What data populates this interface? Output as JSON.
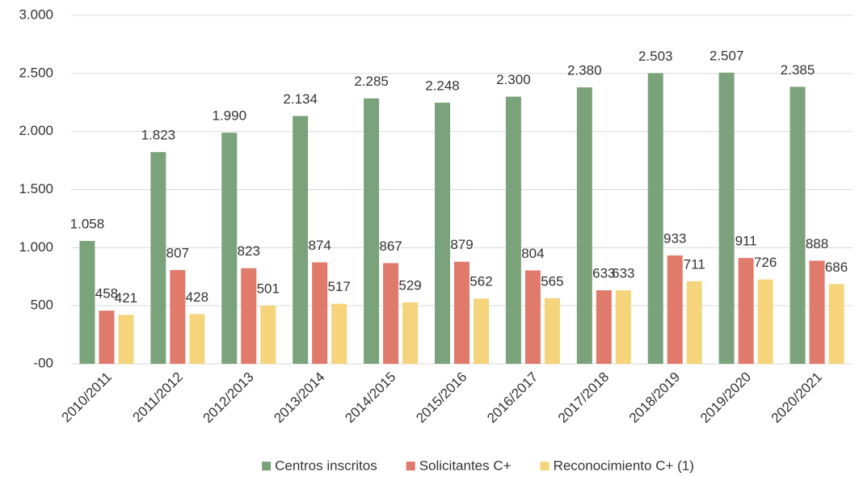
{
  "chart_data": {
    "type": "bar",
    "categories": [
      "2010/2011",
      "2011/2012",
      "2012/2013",
      "2013/2014",
      "2014/2015",
      "2015/2016",
      "2016/2017",
      "2017/2018",
      "2018/2019",
      "2019/2020",
      "2020/2021"
    ],
    "series": [
      {
        "name": "Centros inscritos",
        "color": "#7ba37b",
        "values": [
          1058,
          1823,
          1990,
          2134,
          2285,
          2248,
          2300,
          2380,
          2503,
          2507,
          2385
        ],
        "value_labels": [
          "1.058",
          "1.823",
          "1.990",
          "2.134",
          "2.285",
          "2.248",
          "2.300",
          "2.380",
          "2.503",
          "2.507",
          "2.385"
        ]
      },
      {
        "name": "Solicitantes C+",
        "color": "#e07a6b",
        "values": [
          458,
          807,
          823,
          874,
          867,
          879,
          804,
          633,
          933,
          911,
          888
        ]
      },
      {
        "name": "Reconocimiento C+ (1)",
        "color": "#f6d47c",
        "values": [
          421,
          428,
          501,
          517,
          529,
          562,
          565,
          633,
          711,
          726,
          686
        ]
      }
    ],
    "ylim": [
      0,
      3000
    ],
    "yticks": [
      {
        "value": 0,
        "label": "-00"
      },
      500,
      {
        "value": 1000,
        "label": "1.000"
      },
      {
        "value": 1500,
        "label": "1.500"
      },
      {
        "value": 2000,
        "label": "2.000"
      },
      {
        "value": 2500,
        "label": "2.500"
      },
      {
        "value": 3000,
        "label": "3.000"
      }
    ],
    "grid": true,
    "legend": "bottom"
  }
}
